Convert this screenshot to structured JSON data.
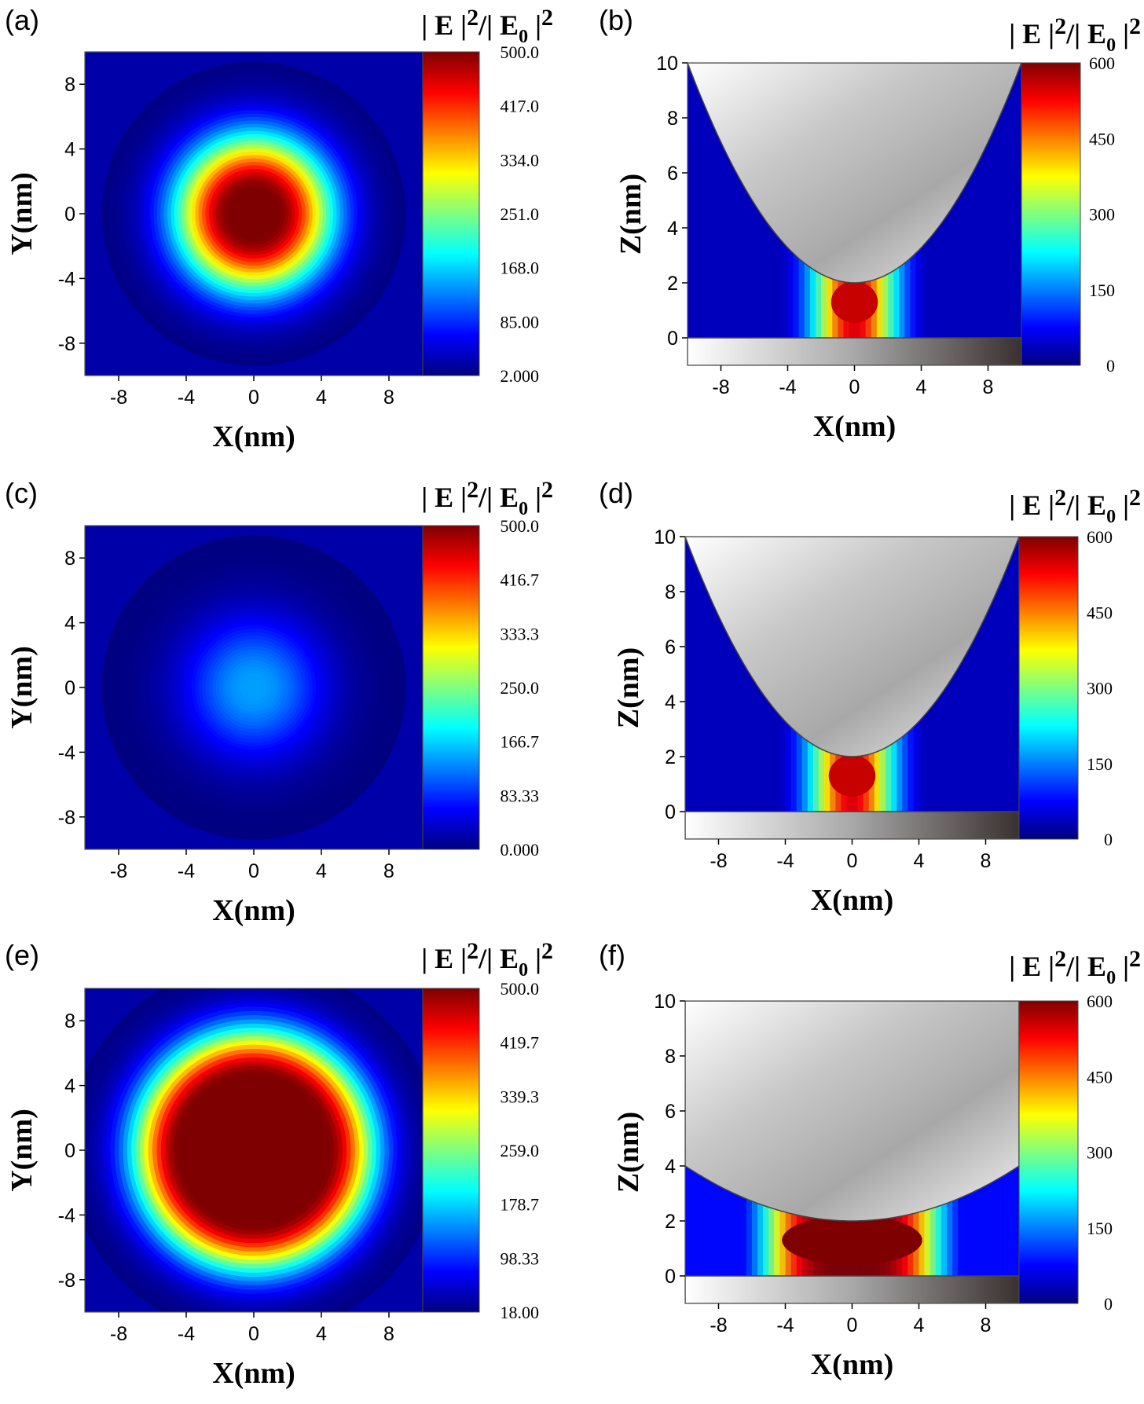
{
  "figure": {
    "colormap": [
      "#00007f",
      "#0000ff",
      "#007fff",
      "#00ffff",
      "#7fff7f",
      "#ffff00",
      "#ff7f00",
      "#ff0000",
      "#7f0000"
    ],
    "metal_gradient": [
      "#ffffff",
      "#c8c8c8",
      "#a8a8a8",
      "#3a3030"
    ]
  },
  "chart_data": [
    {
      "panel": "(a)",
      "type": "heatmap",
      "view": "top",
      "xlabel": "X(nm)",
      "ylabel": "Y(nm)",
      "colorbar_title": {
        "main": "| E |",
        "sup": "2",
        "mid": "/| E",
        "sub": "0",
        "end": " |",
        "sup2": "2"
      },
      "xlim": [
        -10,
        10
      ],
      "ylim": [
        -10,
        10
      ],
      "xticks": [
        "-8",
        "-4",
        "0",
        "4",
        "8"
      ],
      "yticks": [
        "8",
        "4",
        "0",
        "-4",
        "-8"
      ],
      "colorbar_range": [
        2,
        500
      ],
      "colorbar_ticks": [
        "500.0",
        "417.0",
        "334.0",
        "251.0",
        "168.0",
        "85.00",
        "2.000"
      ],
      "hotspot": {
        "center": [
          0,
          0
        ],
        "peak": 500,
        "radius_nm": 1.5,
        "falloff_nm": 9
      }
    },
    {
      "panel": "(b)",
      "type": "heatmap",
      "view": "side",
      "xlabel": "X(nm)",
      "ylabel": "Z(nm)",
      "colorbar_title": {
        "main": "| E |",
        "sup": "2",
        "mid": "/| E",
        "sub": "0",
        "end": " |",
        "sup2": "2"
      },
      "xlim": [
        -10,
        10
      ],
      "ylim": [
        -1,
        10
      ],
      "xticks": [
        "-8",
        "-4",
        "0",
        "4",
        "8"
      ],
      "yticks": [
        "10",
        "8",
        "6",
        "4",
        "2",
        "0"
      ],
      "colorbar_range": [
        0,
        600
      ],
      "colorbar_ticks": [
        "600",
        "450",
        "300",
        "150",
        "0"
      ],
      "tip": {
        "apex_z": 2,
        "edge_z": 10
      },
      "substrate_top_z": 0
    },
    {
      "panel": "(c)",
      "type": "heatmap",
      "view": "top",
      "xlabel": "X(nm)",
      "ylabel": "Y(nm)",
      "colorbar_title": {
        "main": "| E |",
        "sup": "2",
        "mid": "/| E",
        "sub": "0",
        "end": " |",
        "sup2": "2"
      },
      "xlim": [
        -10,
        10
      ],
      "ylim": [
        -10,
        10
      ],
      "xticks": [
        "-8",
        "-4",
        "0",
        "4",
        "8"
      ],
      "yticks": [
        "8",
        "4",
        "0",
        "-4",
        "-8"
      ],
      "colorbar_range": [
        0,
        500
      ],
      "colorbar_ticks": [
        "500.0",
        "416.7",
        "333.3",
        "250.0",
        "166.7",
        "83.33",
        "0.000"
      ],
      "hotspot": {
        "center": [
          0,
          0
        ],
        "peak": 140,
        "radius_nm": 0.5,
        "falloff_nm": 9
      }
    },
    {
      "panel": "(d)",
      "type": "heatmap",
      "view": "side",
      "xlabel": "X(nm)",
      "ylabel": "Z(nm)",
      "colorbar_title": {
        "main": "| E |",
        "sup": "2",
        "mid": "/| E",
        "sub": "0",
        "end": " |",
        "sup2": "2"
      },
      "xlim": [
        -10,
        10
      ],
      "ylim": [
        -1,
        10
      ],
      "xticks": [
        "-8",
        "-4",
        "0",
        "4",
        "8"
      ],
      "yticks": [
        "10",
        "8",
        "6",
        "4",
        "2",
        "0"
      ],
      "colorbar_range": [
        0,
        600
      ],
      "colorbar_ticks": [
        "600",
        "450",
        "300",
        "150",
        "0"
      ],
      "tip": {
        "apex_z": 2,
        "edge_z": 10
      },
      "substrate_top_z": 0
    },
    {
      "panel": "(e)",
      "type": "heatmap",
      "view": "top",
      "xlabel": "X(nm)",
      "ylabel": "Y(nm)",
      "colorbar_title": {
        "main": "| E |",
        "sup": "2",
        "mid": "/| E",
        "sub": "0",
        "end": " |",
        "sup2": "2"
      },
      "xlim": [
        -10,
        10
      ],
      "ylim": [
        -10,
        10
      ],
      "xticks": [
        "-8",
        "-4",
        "0",
        "4",
        "8"
      ],
      "yticks": [
        "8",
        "4",
        "0",
        "-4",
        "-8"
      ],
      "colorbar_range": [
        18,
        500
      ],
      "colorbar_ticks": [
        "500.0",
        "419.7",
        "339.3",
        "259.0",
        "178.7",
        "98.33",
        "18.00"
      ],
      "hotspot": {
        "center": [
          0,
          0
        ],
        "peak": 500,
        "radius_nm": 4.5,
        "falloff_nm": 11
      }
    },
    {
      "panel": "(f)",
      "type": "heatmap",
      "view": "side",
      "xlabel": "X(nm)",
      "ylabel": "Z(nm)",
      "colorbar_title": {
        "main": "| E |",
        "sup": "2",
        "mid": "/| E",
        "sub": "0",
        "end": " |",
        "sup2": "2"
      },
      "xlim": [
        -10,
        10
      ],
      "ylim": [
        -1,
        10
      ],
      "xticks": [
        "-8",
        "-4",
        "0",
        "4",
        "8"
      ],
      "yticks": [
        "10",
        "8",
        "6",
        "4",
        "2",
        "0"
      ],
      "colorbar_range": [
        0,
        600
      ],
      "colorbar_ticks": [
        "600",
        "450",
        "300",
        "150",
        "0"
      ],
      "tip": {
        "apex_z": 2,
        "edge_z": 4
      },
      "substrate_top_z": 0
    }
  ]
}
